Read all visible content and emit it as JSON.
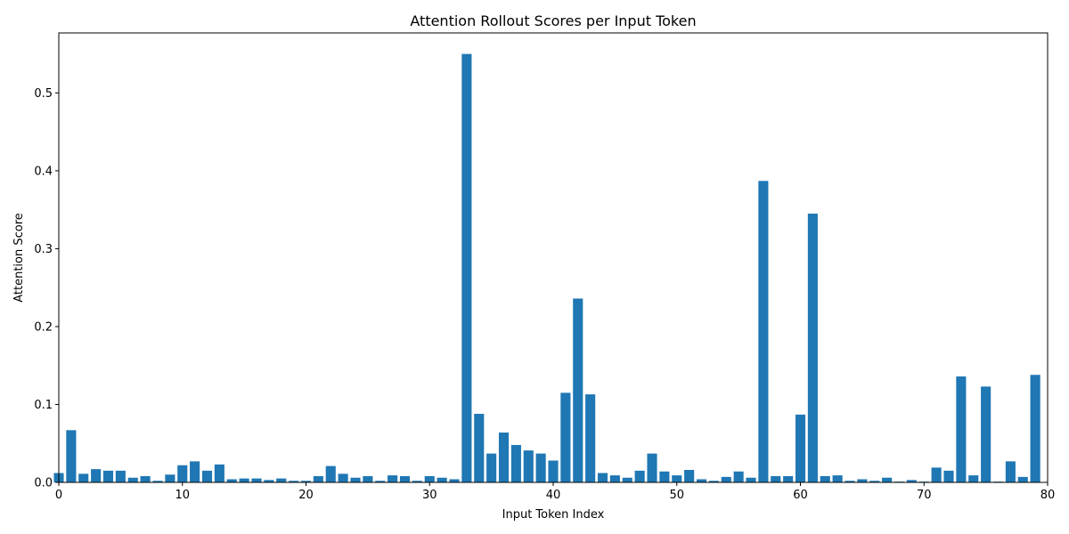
{
  "chart_data": {
    "type": "bar",
    "title": "Attention Rollout Scores per Input Token",
    "xlabel": "Input Token Index",
    "ylabel": "Attention Score",
    "xlim": [
      0,
      80
    ],
    "ylim": [
      0,
      0.577
    ],
    "xticks": [
      0,
      10,
      20,
      30,
      40,
      50,
      60,
      70,
      80
    ],
    "yticks": [
      0.0,
      0.1,
      0.2,
      0.3,
      0.4,
      0.5
    ],
    "xtick_labels": [
      "0",
      "10",
      "20",
      "30",
      "40",
      "50",
      "60",
      "70",
      "80"
    ],
    "ytick_labels": [
      "0.0",
      "0.1",
      "0.2",
      "0.3",
      "0.4",
      "0.5"
    ],
    "grid": false,
    "bar_color": "#1f77b4",
    "x": [
      0,
      1,
      2,
      3,
      4,
      5,
      6,
      7,
      8,
      9,
      10,
      11,
      12,
      13,
      14,
      15,
      16,
      17,
      18,
      19,
      20,
      21,
      22,
      23,
      24,
      25,
      26,
      27,
      28,
      29,
      30,
      31,
      32,
      33,
      34,
      35,
      36,
      37,
      38,
      39,
      40,
      41,
      42,
      43,
      44,
      45,
      46,
      47,
      48,
      49,
      50,
      51,
      52,
      53,
      54,
      55,
      56,
      57,
      58,
      59,
      60,
      61,
      62,
      63,
      64,
      65,
      66,
      67,
      68,
      69,
      70,
      71,
      72,
      73,
      74,
      75,
      76,
      77,
      78,
      79
    ],
    "values": [
      0.012,
      0.067,
      0.011,
      0.017,
      0.015,
      0.015,
      0.006,
      0.008,
      0.002,
      0.01,
      0.022,
      0.027,
      0.015,
      0.023,
      0.004,
      0.005,
      0.005,
      0.003,
      0.005,
      0.002,
      0.002,
      0.008,
      0.021,
      0.011,
      0.006,
      0.008,
      0.002,
      0.009,
      0.008,
      0.002,
      0.008,
      0.006,
      0.004,
      0.55,
      0.088,
      0.037,
      0.064,
      0.048,
      0.041,
      0.037,
      0.028,
      0.115,
      0.236,
      0.113,
      0.012,
      0.009,
      0.006,
      0.015,
      0.037,
      0.014,
      0.009,
      0.016,
      0.004,
      0.002,
      0.007,
      0.014,
      0.006,
      0.387,
      0.008,
      0.008,
      0.087,
      0.345,
      0.008,
      0.009,
      0.002,
      0.004,
      0.002,
      0.006,
      0.001,
      0.003,
      0.001,
      0.019,
      0.015,
      0.136,
      0.009,
      0.123,
      0.001,
      0.027,
      0.007,
      0.138
    ]
  }
}
